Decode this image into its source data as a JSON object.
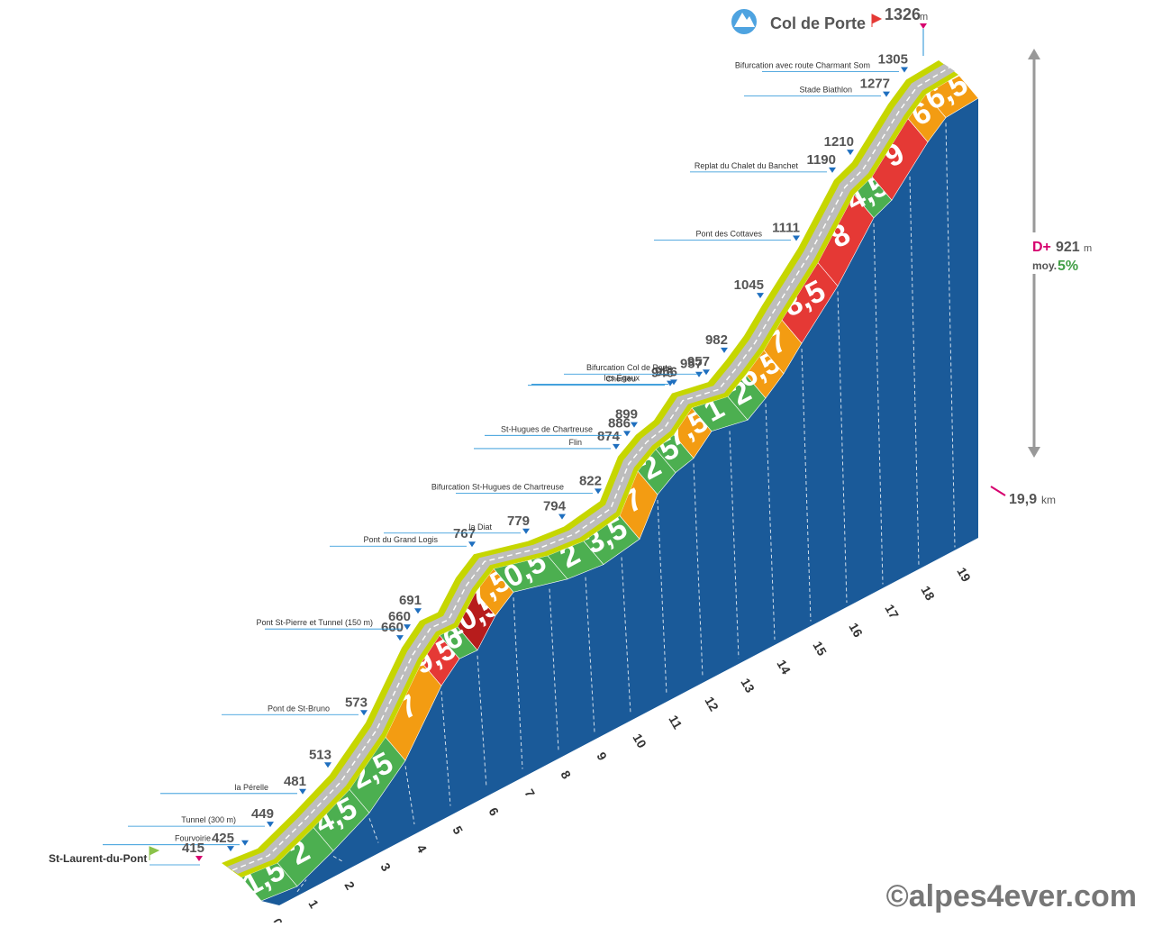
{
  "chart_data": {
    "type": "area",
    "title": "Col de Porte",
    "summit_altitude": "1326",
    "summit_unit": "m",
    "start_name": "St-Laurent-du-Pont",
    "start_altitude": "415",
    "total_distance": "19,9",
    "distance_unit": "km",
    "elevation_gain_label": "D+",
    "elevation_gain": "921",
    "elevation_gain_unit": "m",
    "average_label": "moy.",
    "average_gradient": "5%",
    "km_ticks": [
      "0",
      "1",
      "2",
      "3",
      "4",
      "5",
      "6",
      "7",
      "8",
      "9",
      "10",
      "11",
      "12",
      "13",
      "14",
      "15",
      "16",
      "17",
      "18",
      "19"
    ],
    "segments": [
      {
        "km": 0,
        "gradient": "1,5",
        "color": "#4caf50"
      },
      {
        "km": 1,
        "gradient": "2",
        "color": "#4caf50"
      },
      {
        "km": 2,
        "gradient": "4,5",
        "color": "#4caf50"
      },
      {
        "km": 3,
        "gradient": "2,5",
        "color": "#4caf50"
      },
      {
        "km": 4,
        "gradient": "7",
        "color": "#f39c12"
      },
      {
        "km": 5,
        "gradient": "9,5",
        "color": "#e53935"
      },
      {
        "km": 5.5,
        "gradient": "6",
        "color": "#4caf50"
      },
      {
        "km": 6,
        "gradient": "10,5",
        "color": "#b71c1c"
      },
      {
        "km": 6.5,
        "gradient": "7,5",
        "color": "#f39c12"
      },
      {
        "km": 7,
        "gradient": "0,5",
        "color": "#4caf50"
      },
      {
        "km": 8.5,
        "gradient": "2",
        "color": "#4caf50"
      },
      {
        "km": 9.5,
        "gradient": "3,5",
        "color": "#4caf50"
      },
      {
        "km": 10.5,
        "gradient": "7",
        "color": "#f39c12"
      },
      {
        "km": 11,
        "gradient": "2",
        "color": "#4caf50"
      },
      {
        "km": 11.5,
        "gradient": "5",
        "color": "#4caf50"
      },
      {
        "km": 12,
        "gradient": "7,5",
        "color": "#f39c12"
      },
      {
        "km": 12.5,
        "gradient": "1",
        "color": "#4caf50"
      },
      {
        "km": 13.5,
        "gradient": "2",
        "color": "#4caf50"
      },
      {
        "km": 14,
        "gradient": "6,5",
        "color": "#f39c12"
      },
      {
        "km": 14.5,
        "gradient": "7",
        "color": "#f39c12"
      },
      {
        "km": 15,
        "gradient": "8,5",
        "color": "#e53935"
      },
      {
        "km": 16,
        "gradient": "8",
        "color": "#e53935"
      },
      {
        "km": 17,
        "gradient": "4,5",
        "color": "#4caf50"
      },
      {
        "km": 17.5,
        "gradient": "9",
        "color": "#e53935"
      },
      {
        "km": 18.5,
        "gradient": "6",
        "color": "#f39c12"
      },
      {
        "km": 19,
        "gradient": "6,5",
        "color": "#f39c12"
      }
    ],
    "profile": [
      {
        "km": 0,
        "alt": 415
      },
      {
        "km": 1,
        "alt": 430
      },
      {
        "km": 2,
        "alt": 470
      },
      {
        "km": 3,
        "alt": 513
      },
      {
        "km": 4,
        "alt": 573
      },
      {
        "km": 5,
        "alt": 660
      },
      {
        "km": 5.5,
        "alt": 691
      },
      {
        "km": 6,
        "alt": 700
      },
      {
        "km": 6.5,
        "alt": 740
      },
      {
        "km": 7,
        "alt": 767
      },
      {
        "km": 8.5,
        "alt": 779
      },
      {
        "km": 9.5,
        "alt": 794
      },
      {
        "km": 10.5,
        "alt": 822
      },
      {
        "km": 11,
        "alt": 874
      },
      {
        "km": 11.5,
        "alt": 899
      },
      {
        "km": 12,
        "alt": 915
      },
      {
        "km": 12.5,
        "alt": 946
      },
      {
        "km": 13.5,
        "alt": 957
      },
      {
        "km": 14,
        "alt": 982
      },
      {
        "km": 14.5,
        "alt": 1010
      },
      {
        "km": 15,
        "alt": 1045
      },
      {
        "km": 16,
        "alt": 1111
      },
      {
        "km": 17,
        "alt": 1190
      },
      {
        "km": 17.5,
        "alt": 1210
      },
      {
        "km": 18.5,
        "alt": 1277
      },
      {
        "km": 19,
        "alt": 1305
      },
      {
        "km": 19.9,
        "alt": 1326
      }
    ],
    "waypoints": [
      {
        "name": "",
        "alt": "425",
        "km": 0.3
      },
      {
        "name": "Fourvoirie",
        "alt": "",
        "km": 0.7,
        "icon": "village"
      },
      {
        "name": "Tunnel (300 m)",
        "alt": "449",
        "km": 1.4,
        "icon": "tunnel"
      },
      {
        "name": "la Pérelle",
        "alt": "481",
        "km": 2.3,
        "icon": "village"
      },
      {
        "name": "",
        "alt": "513",
        "km": 3
      },
      {
        "name": "Pont de St-Bruno",
        "alt": "573",
        "km": 4,
        "icon": "bridge"
      },
      {
        "name": "",
        "alt": "660",
        "km": 5
      },
      {
        "name": "Pont St-Pierre et Tunnel (150 m)",
        "alt": "660",
        "km": 5.2,
        "icon": "bridge-tunnel"
      },
      {
        "name": "",
        "alt": "691",
        "km": 5.5
      },
      {
        "name": "Pont du Grand Logis",
        "alt": "767",
        "km": 7,
        "icon": "bridge"
      },
      {
        "name": "la Diat",
        "alt": "779",
        "km": 8.5,
        "icon": "village"
      },
      {
        "name": "",
        "alt": "794",
        "km": 9.5
      },
      {
        "name": "Bifurcation St-Hugues de Chartreuse",
        "alt": "822",
        "km": 10.5
      },
      {
        "name": "Flin",
        "alt": "874",
        "km": 11,
        "icon": "village"
      },
      {
        "name": "St-Hugues de Chartreuse",
        "alt": "886",
        "km": 11.3,
        "icon": "village"
      },
      {
        "name": "",
        "alt": "899",
        "km": 11.5
      },
      {
        "name": "les Égaux",
        "alt": "956",
        "km": 12.6,
        "icon": "village"
      },
      {
        "name": "Cherlieu",
        "alt": "946",
        "km": 12.5,
        "icon": "village"
      },
      {
        "name": "",
        "alt": "957",
        "km": 13.3
      },
      {
        "name": "Bifurcation Col de Porte",
        "alt": "957",
        "km": 13.5
      },
      {
        "name": "",
        "alt": "982",
        "km": 14
      },
      {
        "name": "",
        "alt": "1045",
        "km": 15
      },
      {
        "name": "Pont des Cottaves",
        "alt": "1111",
        "km": 16,
        "icon": "bridge"
      },
      {
        "name": "Replat du Chalet du Banchet",
        "alt": "1190",
        "km": 17
      },
      {
        "name": "",
        "alt": "1210",
        "km": 17.5
      },
      {
        "name": "Stade Biathlon",
        "alt": "1277",
        "km": 18.5
      },
      {
        "name": "Bifurcation avec route Charmant Som",
        "alt": "1305",
        "km": 19
      }
    ]
  },
  "copyright": "©alpes4ever.com",
  "colors": {
    "road": "#bdbdbd",
    "verge": "#c6d600",
    "side": "#1a5a99",
    "green": "#4caf50",
    "orange": "#f39c12",
    "red": "#e53935",
    "darkred": "#b71c1c",
    "magenta": "#d6006e"
  }
}
